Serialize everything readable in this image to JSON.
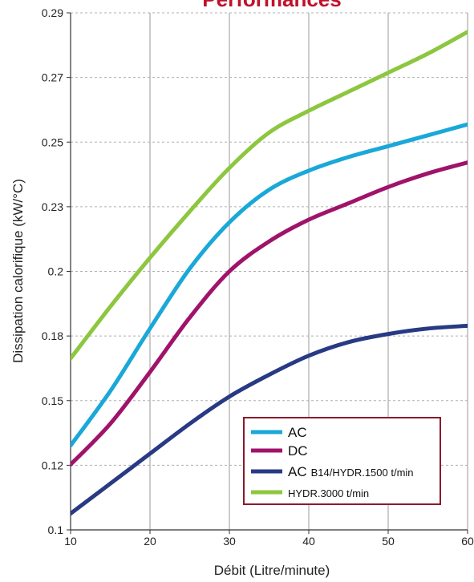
{
  "chart_data": {
    "type": "line",
    "title": "Performances",
    "xlabel": "Débit (Litre/minute)",
    "ylabel": "Dissipation calorifique (kW/°C)",
    "xlim": [
      10,
      60
    ],
    "ylim": [
      0.1,
      0.29
    ],
    "x_ticks": [
      "10",
      "20",
      "30",
      "40",
      "50",
      "60"
    ],
    "y_ticks": [
      "0.1",
      "0.12",
      "0.15",
      "0.18",
      "0.2",
      "0.23",
      "0.25",
      "0.27",
      "0.29"
    ],
    "grid": {
      "vertical": "solid",
      "horizontal": "dashed"
    },
    "legend_position": "bottom-right",
    "title_color": "#c0102a",
    "series": [
      {
        "name": "AC",
        "color": "#19a8d8",
        "x": [
          10,
          15,
          20,
          25,
          30,
          35,
          40,
          45,
          50,
          55,
          60
        ],
        "y": [
          0.131,
          0.151,
          0.174,
          0.196,
          0.213,
          0.225,
          0.232,
          0.237,
          0.241,
          0.245,
          0.249
        ]
      },
      {
        "name": "DC",
        "color": "#a0136a",
        "x": [
          10,
          15,
          20,
          25,
          30,
          35,
          40,
          45,
          50,
          55,
          60
        ],
        "y": [
          0.124,
          0.139,
          0.158,
          0.178,
          0.195,
          0.206,
          0.214,
          0.22,
          0.226,
          0.231,
          0.235
        ]
      },
      {
        "name": "AC",
        "name_suffix": "B14/HYDR.1500 t/min",
        "color": "#283a84",
        "x": [
          10,
          15,
          20,
          25,
          30,
          35,
          40,
          45,
          50,
          55,
          60
        ],
        "y": [
          0.106,
          0.117,
          0.128,
          0.139,
          0.149,
          0.157,
          0.164,
          0.169,
          0.172,
          0.174,
          0.175
        ]
      },
      {
        "name": "HYDR.3000 t/min",
        "color": "#8dc63f",
        "x": [
          10,
          15,
          20,
          25,
          30,
          35,
          40,
          45,
          50,
          55,
          60
        ],
        "y": [
          0.163,
          0.182,
          0.2,
          0.217,
          0.233,
          0.246,
          0.254,
          0.261,
          0.268,
          0.275,
          0.283
        ]
      }
    ]
  }
}
